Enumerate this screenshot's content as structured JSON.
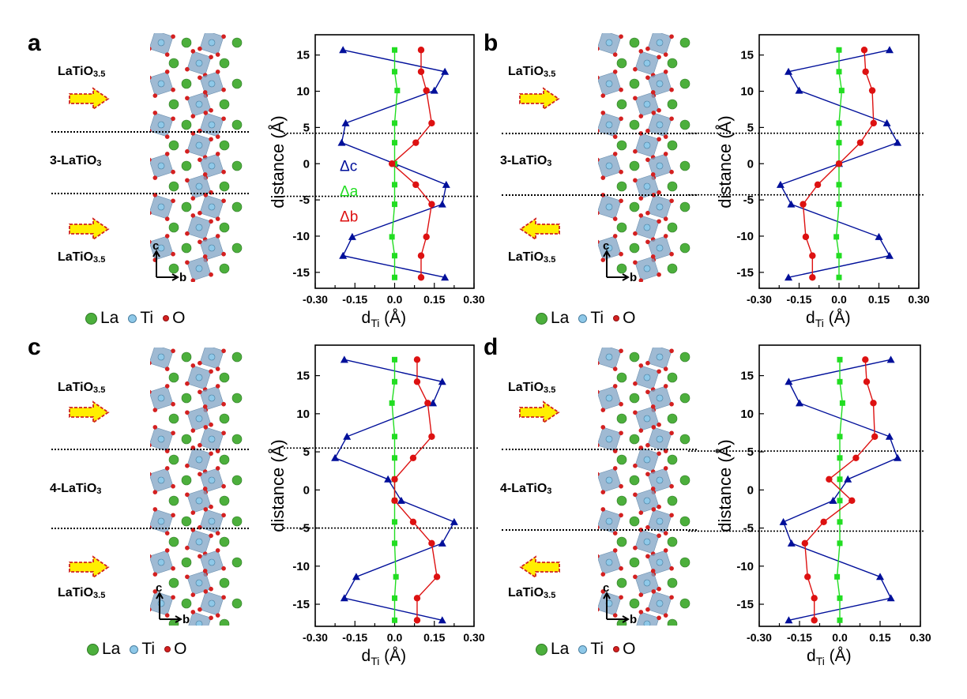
{
  "panels": [
    {
      "letter": "a",
      "top_label": {
        "base": "LaTiO",
        "sub": "3.5"
      },
      "middle_label": {
        "base": "3-LaTiO",
        "sub": "3"
      },
      "bottom_label": {
        "base": "LaTiO",
        "sub": "3.5"
      },
      "top_arrow": "right",
      "bottom_arrow": "right",
      "axis_c": "c",
      "axis_b": "b",
      "legend": [
        "La",
        "Ti",
        "O"
      ]
    },
    {
      "letter": "b",
      "top_label": {
        "base": "LaTiO",
        "sub": "3.5"
      },
      "middle_label": {
        "base": "3-LaTiO",
        "sub": "3"
      },
      "bottom_label": {
        "base": "LaTiO",
        "sub": "3.5"
      },
      "top_arrow": "right",
      "bottom_arrow": "left",
      "axis_c": "c",
      "axis_b": "b",
      "legend": [
        "La",
        "Ti",
        "O"
      ]
    },
    {
      "letter": "c",
      "top_label": {
        "base": "LaTiO",
        "sub": "3.5"
      },
      "middle_label": {
        "base": "4-LaTiO",
        "sub": "3"
      },
      "bottom_label": {
        "base": "LaTiO",
        "sub": "3.5"
      },
      "top_arrow": "right",
      "bottom_arrow": "right",
      "axis_c": "c",
      "axis_b": "b",
      "legend": [
        "La",
        "Ti",
        "O"
      ]
    },
    {
      "letter": "d",
      "top_label": {
        "base": "LaTiO",
        "sub": "3.5"
      },
      "middle_label": {
        "base": "4-LaTiO",
        "sub": "3"
      },
      "bottom_label": {
        "base": "LaTiO",
        "sub": "3.5"
      },
      "top_arrow": "right",
      "bottom_arrow": "left",
      "axis_c": "c",
      "axis_b": "b",
      "legend": [
        "La",
        "Ti",
        "O"
      ]
    }
  ],
  "colors": {
    "La": "#4caf3c",
    "Ti": "#8ec8e8",
    "O": "#d42020",
    "octahedron": "#7fa3c4",
    "arrow_fill": "#ffee00",
    "arrow_stroke": "#d02020",
    "dc": "#000f9a",
    "da": "#22dd22",
    "db": "#dd1111"
  },
  "chart_data": [
    {
      "type": "line",
      "panel": "a",
      "xlabel": {
        "main": "d",
        "subscript": "Ti",
        "unit": " (Å)"
      },
      "ylabel": "distance (Å)",
      "xlim": [
        -0.3,
        0.3
      ],
      "ylim": [
        -17.2,
        17.8
      ],
      "xticks": [
        "-0.30",
        "-0.15",
        "0.0",
        "0.15",
        "0.30"
      ],
      "yticks": [
        "-15",
        "-10",
        "-5",
        "0",
        "5",
        "10",
        "15"
      ],
      "grid": false,
      "interface_lines": [
        4.2,
        -4.5
      ],
      "legend_shown": true,
      "legend_placement": "left-middle",
      "y": [
        15.7,
        12.7,
        10.1,
        5.6,
        2.9,
        0,
        -2.9,
        -5.6,
        -10.1,
        -12.7,
        -15.7
      ],
      "series": [
        {
          "name": "Δc",
          "marker": "triangle",
          "values": [
            -0.195,
            0.19,
            0.15,
            -0.185,
            -0.2,
            0,
            0.195,
            0.18,
            -0.16,
            -0.195,
            0.19
          ]
        },
        {
          "name": "Δa",
          "marker": "square",
          "values": [
            0,
            0,
            0.01,
            0,
            0,
            0,
            0,
            0,
            -0.01,
            0,
            0
          ]
        },
        {
          "name": "Δb",
          "marker": "circle",
          "values": [
            0.1,
            0.1,
            0.12,
            0.14,
            0.08,
            -0.01,
            0.08,
            0.14,
            0.12,
            0.1,
            0.1
          ]
        }
      ]
    },
    {
      "type": "line",
      "panel": "b",
      "xlabel": {
        "main": "d",
        "subscript": "Ti",
        "unit": " (Å)"
      },
      "ylabel": "distance (Å)",
      "xlim": [
        -0.3,
        0.3
      ],
      "ylim": [
        -17.2,
        17.8
      ],
      "xticks": [
        "-0.30",
        "-0.15",
        "0.0",
        "0.15",
        "0.30"
      ],
      "yticks": [
        "-15",
        "-10",
        "-5",
        "0",
        "5",
        "10",
        "15"
      ],
      "grid": false,
      "interface_lines": [
        4.2,
        -4.3
      ],
      "legend_shown": false,
      "y": [
        15.7,
        12.7,
        10.1,
        5.6,
        2.9,
        0,
        -2.9,
        -5.6,
        -10.1,
        -12.7,
        -15.7
      ],
      "series": [
        {
          "name": "Δc",
          "marker": "triangle",
          "values": [
            0.19,
            -0.19,
            -0.15,
            0.18,
            0.22,
            0,
            -0.22,
            -0.18,
            0.15,
            0.19,
            -0.19
          ]
        },
        {
          "name": "Δa",
          "marker": "square",
          "values": [
            0,
            0,
            0.01,
            0,
            0,
            0,
            0,
            0,
            -0.01,
            0,
            0
          ]
        },
        {
          "name": "Δb",
          "marker": "circle",
          "values": [
            0.095,
            0.1,
            0.125,
            0.13,
            0.08,
            0,
            -0.08,
            -0.135,
            -0.125,
            -0.1,
            -0.1
          ]
        }
      ]
    },
    {
      "type": "line",
      "panel": "c",
      "xlabel": {
        "main": "d",
        "subscript": "Ti",
        "unit": " (Å)"
      },
      "ylabel": "distance (Å)",
      "xlim": [
        -0.3,
        0.3
      ],
      "ylim": [
        -17.9,
        19.0
      ],
      "xticks": [
        "-0.30",
        "-0.15",
        "0.0",
        "0.15",
        "0.30"
      ],
      "yticks": [
        "-15",
        "-10",
        "-5",
        "0",
        "5",
        "10",
        "15"
      ],
      "grid": false,
      "interface_lines": [
        5.5,
        -5.0
      ],
      "legend_shown": false,
      "y": [
        17.1,
        14.2,
        11.4,
        7.0,
        4.2,
        1.4,
        -1.4,
        -4.2,
        -7.0,
        -11.4,
        -14.2,
        -17.1
      ],
      "series": [
        {
          "name": "Δc",
          "marker": "triangle",
          "values": [
            -0.19,
            0.18,
            0.145,
            -0.18,
            -0.225,
            -0.025,
            0.025,
            0.225,
            0.18,
            -0.145,
            -0.19,
            0.18
          ]
        },
        {
          "name": "Δa",
          "marker": "square",
          "values": [
            0,
            0,
            -0.01,
            0,
            0,
            0,
            0,
            0,
            0,
            0.005,
            0,
            0
          ]
        },
        {
          "name": "Δb",
          "marker": "circle",
          "values": [
            0.085,
            0.085,
            0.125,
            0.14,
            0.07,
            0,
            0,
            0.07,
            0.14,
            0.16,
            0.085,
            0.085
          ]
        }
      ]
    },
    {
      "type": "line",
      "panel": "d",
      "xlabel": {
        "main": "d",
        "subscript": "Ti",
        "unit": " (Å)"
      },
      "ylabel": "distance (Å)",
      "xlim": [
        -0.3,
        0.3
      ],
      "ylim": [
        -17.9,
        19.0
      ],
      "xticks": [
        "-0.30",
        "-0.15",
        "0.0",
        "0.15",
        "0.30"
      ],
      "yticks": [
        "-15",
        "-10",
        "-5",
        "0",
        "5",
        "10",
        "15"
      ],
      "grid": false,
      "interface_lines": [
        5.1,
        -5.4
      ],
      "legend_shown": false,
      "y": [
        17.1,
        14.2,
        11.4,
        7.0,
        4.2,
        1.4,
        -1.4,
        -4.2,
        -7.0,
        -11.4,
        -14.2,
        -17.1
      ],
      "series": [
        {
          "name": "Δc",
          "marker": "triangle",
          "values": [
            0.19,
            -0.19,
            -0.15,
            0.185,
            0.215,
            0.03,
            -0.025,
            -0.21,
            -0.18,
            0.15,
            0.19,
            -0.19
          ]
        },
        {
          "name": "Δa",
          "marker": "square",
          "values": [
            0,
            0,
            0.01,
            0,
            0,
            0,
            0,
            0,
            0,
            -0.01,
            0,
            0
          ]
        },
        {
          "name": "Δb",
          "marker": "circle",
          "values": [
            0.095,
            0.1,
            0.125,
            0.13,
            0.06,
            -0.04,
            0.045,
            -0.06,
            -0.13,
            -0.12,
            -0.095,
            -0.095
          ]
        }
      ]
    }
  ]
}
